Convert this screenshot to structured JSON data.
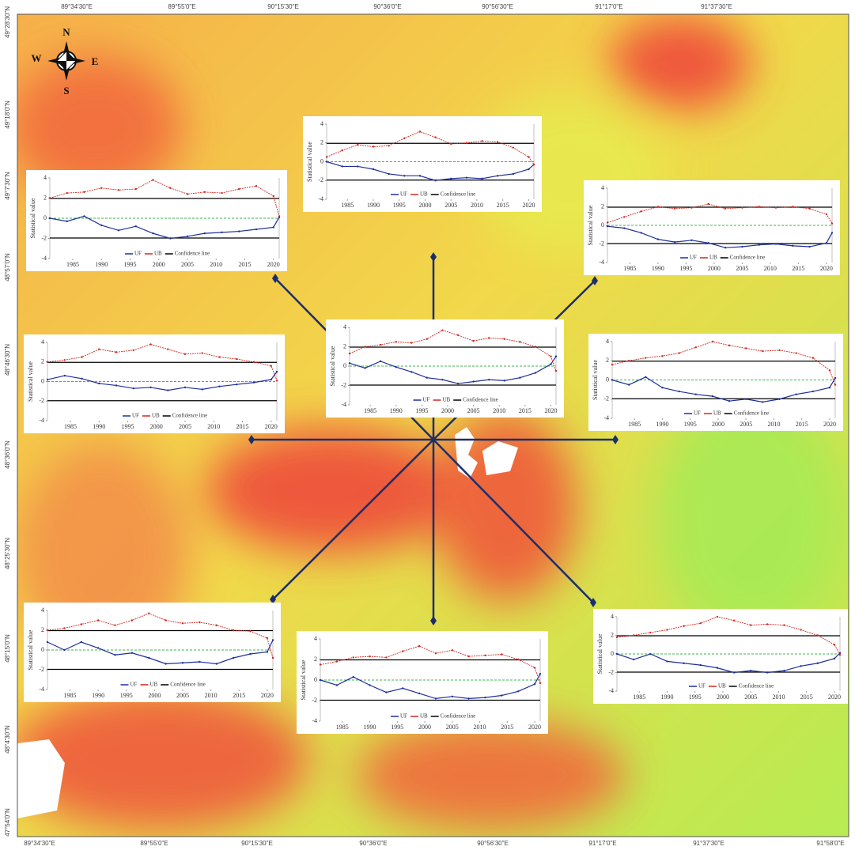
{
  "map": {
    "top_labels": [
      "89°34'30\"E",
      "89°55'0\"E",
      "90°15'30\"E",
      "90°36'0\"E",
      "90°56'30\"E",
      "91°17'0\"E",
      "91°37'30\"E"
    ],
    "bottom_labels": [
      "89°34'30\"E",
      "89°55'0\"E",
      "90°15'30\"E",
      "90°36'0\"E",
      "90°56'30\"E",
      "91°17'0\"E",
      "91°37'30\"E",
      "91°58'0\"E"
    ],
    "left_labels": [
      "49°28'30\"N",
      "49°18'0\"N",
      "49°7'30\"N",
      "48°57'0\"N",
      "48°46'30\"N",
      "48°36'0\"N",
      "48°25'30\"N",
      "48°15'0\"N",
      "48°4'30\"N",
      "47°54'0\"N"
    ],
    "compass": {
      "n": "N",
      "s": "S",
      "e": "E",
      "w": "W"
    }
  },
  "chart_data": [
    {
      "type": "line",
      "y_label": "Statistical value",
      "x": [
        1981,
        1984,
        1987,
        1990,
        1993,
        1996,
        1999,
        2002,
        2005,
        2008,
        2011,
        2014,
        2017,
        2020,
        2021
      ],
      "xlim": [
        1981,
        2021
      ],
      "xticks": [
        1985,
        1990,
        1995,
        2000,
        2005,
        2010,
        2015,
        2020
      ],
      "ylim": [
        -4,
        4
      ],
      "yticks": [
        -4,
        -2,
        0,
        2,
        4
      ],
      "series": [
        {
          "name": "UF",
          "color": "#1f2f9c",
          "values": [
            0,
            -0.5,
            -0.5,
            -0.8,
            -1.3,
            -1.5,
            -1.5,
            -2.0,
            -1.8,
            -1.7,
            -1.8,
            -1.5,
            -1.3,
            -0.8,
            -0.3
          ]
        },
        {
          "name": "UB",
          "color": "#d0281e",
          "values": [
            0.5,
            1.2,
            1.8,
            1.6,
            1.7,
            2.5,
            3.2,
            2.6,
            1.9,
            2.0,
            2.2,
            2.1,
            1.5,
            0.5,
            -0.3
          ]
        }
      ],
      "confidence": {
        "name": "Confidence line",
        "color": "#000000",
        "levels": [
          1.96,
          -1.96
        ]
      }
    },
    {
      "type": "line",
      "y_label": "Statistical value",
      "x": [
        1981,
        1984,
        1987,
        1990,
        1993,
        1996,
        1999,
        2002,
        2005,
        2008,
        2011,
        2014,
        2017,
        2020,
        2021
      ],
      "xlim": [
        1981,
        2021
      ],
      "xticks": [
        1985,
        1990,
        1995,
        2000,
        2005,
        2010,
        2015,
        2020
      ],
      "ylim": [
        -4,
        4
      ],
      "yticks": [
        -4,
        -2,
        0,
        2,
        4
      ],
      "series": [
        {
          "name": "UF",
          "color": "#1f2f9c",
          "values": [
            0,
            -0.3,
            0.2,
            -0.7,
            -1.2,
            -0.8,
            -1.5,
            -2.0,
            -1.8,
            -1.5,
            -1.4,
            -1.3,
            -1.1,
            -0.9,
            0.1
          ]
        },
        {
          "name": "UB",
          "color": "#d0281e",
          "values": [
            2.0,
            2.5,
            2.6,
            3.0,
            2.8,
            2.9,
            3.8,
            3.0,
            2.4,
            2.6,
            2.5,
            2.9,
            3.2,
            2.2,
            0.2
          ]
        }
      ],
      "confidence": {
        "name": "Confidence line",
        "color": "#000000",
        "levels": [
          1.96,
          -1.96
        ]
      }
    },
    {
      "type": "line",
      "y_label": "Statistical value",
      "x": [
        1981,
        1984,
        1987,
        1990,
        1993,
        1996,
        1999,
        2002,
        2005,
        2008,
        2011,
        2014,
        2017,
        2020,
        2021
      ],
      "xlim": [
        1981,
        2021
      ],
      "xticks": [
        1985,
        1990,
        1995,
        2000,
        2005,
        2010,
        2015,
        2020
      ],
      "ylim": [
        -4,
        4
      ],
      "yticks": [
        -4,
        -2,
        0,
        2,
        4
      ],
      "series": [
        {
          "name": "UF",
          "color": "#1f2f9c",
          "values": [
            -0.1,
            -0.3,
            -0.8,
            -1.5,
            -1.8,
            -1.6,
            -1.9,
            -2.4,
            -2.3,
            -2.1,
            -2.0,
            -2.2,
            -2.3,
            -1.9,
            -0.8
          ]
        },
        {
          "name": "UB",
          "color": "#d0281e",
          "values": [
            0.3,
            0.9,
            1.5,
            2.0,
            1.8,
            1.9,
            2.3,
            1.8,
            1.9,
            2.0,
            1.9,
            2.0,
            1.8,
            1.2,
            0.2
          ]
        }
      ],
      "confidence": {
        "name": "Confidence line",
        "color": "#000000",
        "levels": [
          1.96,
          -1.96
        ]
      }
    },
    {
      "type": "line",
      "y_label": "Statistical value",
      "x": [
        1981,
        1984,
        1987,
        1990,
        1993,
        1996,
        1999,
        2002,
        2005,
        2008,
        2011,
        2014,
        2017,
        2020,
        2021
      ],
      "xlim": [
        1981,
        2021
      ],
      "xticks": [
        1985,
        1990,
        1995,
        2000,
        2005,
        2010,
        2015,
        2020
      ],
      "ylim": [
        -4,
        4
      ],
      "yticks": [
        -4,
        -2,
        0,
        2,
        4
      ],
      "series": [
        {
          "name": "UF",
          "color": "#1f2f9c",
          "values": [
            0.2,
            0.6,
            0.3,
            -0.2,
            -0.4,
            -0.7,
            -0.6,
            -0.9,
            -0.6,
            -0.8,
            -0.5,
            -0.3,
            -0.1,
            0.2,
            1.0
          ]
        },
        {
          "name": "UB",
          "color": "#d0281e",
          "values": [
            2.0,
            2.2,
            2.5,
            3.3,
            3.0,
            3.2,
            3.8,
            3.3,
            2.8,
            2.9,
            2.5,
            2.3,
            2.0,
            1.6,
            0.1
          ]
        }
      ],
      "confidence": {
        "name": "Confidence line",
        "color": "#000000",
        "levels": [
          1.96,
          -1.96
        ]
      }
    },
    {
      "type": "line",
      "y_label": "Statistical value",
      "x": [
        1981,
        1984,
        1987,
        1990,
        1993,
        1996,
        1999,
        2002,
        2005,
        2008,
        2011,
        2014,
        2017,
        2020,
        2021
      ],
      "xlim": [
        1981,
        2021
      ],
      "xticks": [
        1985,
        1990,
        1995,
        2000,
        2005,
        2010,
        2015,
        2020
      ],
      "ylim": [
        -4,
        4
      ],
      "yticks": [
        -4,
        -2,
        0,
        2,
        4
      ],
      "series": [
        {
          "name": "UF",
          "color": "#1f2f9c",
          "values": [
            0.3,
            -0.2,
            0.5,
            -0.1,
            -0.6,
            -1.2,
            -1.4,
            -1.8,
            -1.6,
            -1.4,
            -1.5,
            -1.2,
            -0.7,
            0.2,
            1.0
          ]
        },
        {
          "name": "UB",
          "color": "#d0281e",
          "values": [
            1.3,
            2.0,
            2.2,
            2.5,
            2.4,
            2.8,
            3.7,
            3.2,
            2.6,
            2.9,
            2.8,
            2.5,
            2.0,
            1.0,
            -0.5
          ]
        }
      ],
      "confidence": {
        "name": "Confidence line",
        "color": "#000000",
        "levels": [
          1.96,
          -1.96
        ]
      }
    },
    {
      "type": "line",
      "y_label": "Statistical value",
      "x": [
        1981,
        1984,
        1987,
        1990,
        1993,
        1996,
        1999,
        2002,
        2005,
        2008,
        2011,
        2014,
        2017,
        2020,
        2021
      ],
      "xlim": [
        1981,
        2021
      ],
      "xticks": [
        1985,
        1990,
        1995,
        2000,
        2005,
        2010,
        2015,
        2020
      ],
      "ylim": [
        -4,
        4
      ],
      "yticks": [
        -4,
        -2,
        0,
        2,
        4
      ],
      "series": [
        {
          "name": "UF",
          "color": "#1f2f9c",
          "values": [
            0,
            -0.5,
            0.3,
            -0.8,
            -1.2,
            -1.5,
            -1.7,
            -2.2,
            -2.0,
            -2.3,
            -2.0,
            -1.5,
            -1.2,
            -0.8,
            0.2
          ]
        },
        {
          "name": "UB",
          "color": "#d0281e",
          "values": [
            1.6,
            2.0,
            2.3,
            2.5,
            2.8,
            3.4,
            4.0,
            3.6,
            3.3,
            3.0,
            3.1,
            2.8,
            2.3,
            1.0,
            -0.5
          ]
        }
      ],
      "confidence": {
        "name": "Confidence line",
        "color": "#000000",
        "levels": [
          1.96,
          -1.96
        ]
      }
    },
    {
      "type": "line",
      "y_label": "Statistical value",
      "x": [
        1981,
        1984,
        1987,
        1990,
        1993,
        1996,
        1999,
        2002,
        2005,
        2008,
        2011,
        2014,
        2017,
        2020,
        2021
      ],
      "xlim": [
        1981,
        2021
      ],
      "xticks": [
        1985,
        1990,
        1995,
        2000,
        2005,
        2010,
        2015,
        2020
      ],
      "ylim": [
        -4,
        4
      ],
      "yticks": [
        -4,
        -2,
        0,
        2,
        4
      ],
      "series": [
        {
          "name": "UF",
          "color": "#1f2f9c",
          "values": [
            0.8,
            0,
            0.8,
            0.2,
            -0.5,
            -0.3,
            -0.8,
            -1.4,
            -1.3,
            -1.2,
            -1.4,
            -0.8,
            -0.4,
            -0.2,
            1.0
          ]
        },
        {
          "name": "UB",
          "color": "#d0281e",
          "values": [
            2.0,
            2.2,
            2.6,
            3.0,
            2.5,
            3.0,
            3.7,
            3.0,
            2.7,
            2.8,
            2.5,
            2.0,
            1.9,
            1.2,
            -0.8
          ]
        }
      ],
      "confidence": {
        "name": "Confidence line",
        "color": "#000000",
        "levels": [
          1.96,
          -1.96
        ]
      }
    },
    {
      "type": "line",
      "y_label": "Statistical value",
      "x": [
        1981,
        1984,
        1987,
        1990,
        1993,
        1996,
        1999,
        2002,
        2005,
        2008,
        2011,
        2014,
        2017,
        2020,
        2021
      ],
      "xlim": [
        1981,
        2021
      ],
      "xticks": [
        1985,
        1990,
        1995,
        2000,
        2005,
        2010,
        2015,
        2020
      ],
      "ylim": [
        -4,
        4
      ],
      "yticks": [
        -4,
        -2,
        0,
        2,
        4
      ],
      "series": [
        {
          "name": "UF",
          "color": "#1f2f9c",
          "values": [
            0,
            -0.5,
            0.3,
            -0.5,
            -1.2,
            -0.8,
            -1.3,
            -1.8,
            -1.6,
            -1.8,
            -1.7,
            -1.5,
            -1.1,
            -0.4,
            0.6
          ]
        },
        {
          "name": "UB",
          "color": "#d0281e",
          "values": [
            1.5,
            1.8,
            2.2,
            2.3,
            2.2,
            2.8,
            3.3,
            2.6,
            2.9,
            2.3,
            2.4,
            2.5,
            2.0,
            1.2,
            -0.3
          ]
        }
      ],
      "confidence": {
        "name": "Confidence line",
        "color": "#000000",
        "levels": [
          1.96,
          -1.96
        ]
      }
    },
    {
      "type": "line",
      "y_label": "Statistical value",
      "x": [
        1981,
        1984,
        1987,
        1990,
        1993,
        1996,
        1999,
        2002,
        2005,
        2008,
        2011,
        2014,
        2017,
        2020,
        2021
      ],
      "xlim": [
        1981,
        2021
      ],
      "xticks": [
        1985,
        1990,
        1995,
        2000,
        2005,
        2010,
        2015,
        2020
      ],
      "ylim": [
        -4,
        4
      ],
      "yticks": [
        -4,
        -2,
        0,
        2,
        4
      ],
      "series": [
        {
          "name": "UF",
          "color": "#1f2f9c",
          "values": [
            0,
            -0.6,
            0,
            -0.8,
            -1.0,
            -1.2,
            -1.5,
            -2.0,
            -1.8,
            -2.0,
            -1.8,
            -1.3,
            -1.0,
            -0.5,
            0.1
          ]
        },
        {
          "name": "UB",
          "color": "#d0281e",
          "values": [
            1.8,
            2.0,
            2.3,
            2.6,
            3.0,
            3.3,
            4.0,
            3.6,
            3.1,
            3.2,
            3.1,
            2.6,
            2.0,
            1.0,
            -0.1
          ]
        }
      ],
      "confidence": {
        "name": "Confidence line",
        "color": "#000000",
        "levels": [
          1.96,
          -1.96
        ]
      }
    }
  ]
}
